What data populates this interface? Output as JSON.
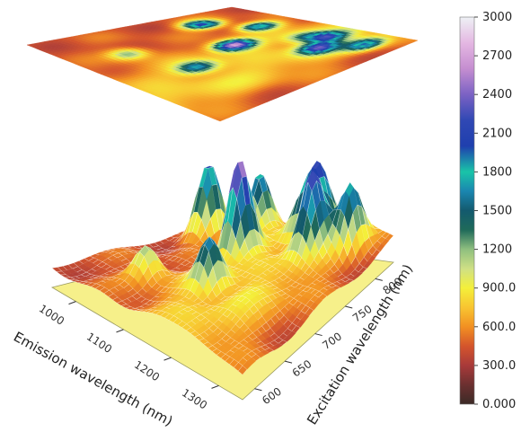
{
  "chart_data": {
    "type": "surface3d",
    "title": "",
    "xlabel": "Emission wavelength (nm)",
    "ylabel": "Excitation wavelength (nm)",
    "zlabel": "",
    "emission_ticks": [
      "1000",
      "1100",
      "1200",
      "1300"
    ],
    "excitation_ticks": [
      "600",
      "650",
      "700",
      "750",
      "800"
    ],
    "emission_range": [
      950,
      1350
    ],
    "excitation_range": [
      580,
      830
    ],
    "z_range": [
      0,
      3000
    ],
    "baseline": 450,
    "ridges": [
      {
        "emission": 1250,
        "amplitude": 350,
        "width_nm": 60
      },
      {
        "emission": 1150,
        "amplitude": 220,
        "width_nm": 50
      }
    ],
    "peaks": [
      {
        "emission": 1010,
        "excitation": 760,
        "intensity": 2100
      },
      {
        "emission": 1130,
        "excitation": 730,
        "intensity": 2600
      },
      {
        "emission": 1080,
        "excitation": 790,
        "intensity": 1850
      },
      {
        "emission": 1240,
        "excitation": 770,
        "intensity": 1950
      },
      {
        "emission": 1210,
        "excitation": 800,
        "intensity": 1850
      },
      {
        "emission": 1290,
        "excitation": 800,
        "intensity": 1700
      },
      {
        "emission": 1170,
        "excitation": 660,
        "intensity": 1550
      },
      {
        "emission": 1060,
        "excitation": 640,
        "intensity": 1250
      },
      {
        "emission": 1180,
        "excitation": 790,
        "intensity": 1200
      }
    ],
    "colorbar": {
      "tick_labels": [
        "3000",
        "2700",
        "2400",
        "2100",
        "1800",
        "1500",
        "1200",
        "900.0",
        "600.0",
        "300.0",
        "0.000"
      ],
      "tick_values": [
        3000,
        2700,
        2400,
        2100,
        1800,
        1500,
        1200,
        900,
        600,
        300,
        0
      ]
    },
    "colors": {
      "stops": [
        [
          0,
          "#3b2a26"
        ],
        [
          150,
          "#6b3030"
        ],
        [
          300,
          "#a83a3a"
        ],
        [
          450,
          "#d4552c"
        ],
        [
          600,
          "#f29022"
        ],
        [
          750,
          "#f8c531"
        ],
        [
          900,
          "#f4f03a"
        ],
        [
          1050,
          "#cfe085"
        ],
        [
          1200,
          "#8fbf7f"
        ],
        [
          1350,
          "#1f6a5a"
        ],
        [
          1500,
          "#135a6e"
        ],
        [
          1650,
          "#1a86b0"
        ],
        [
          1800,
          "#19c4a8"
        ],
        [
          2000,
          "#1f3fae"
        ],
        [
          2200,
          "#3048b4"
        ],
        [
          2400,
          "#7b62c4"
        ],
        [
          2600,
          "#c58ed0"
        ],
        [
          2800,
          "#e4b7e2"
        ],
        [
          3000,
          "#eef1f5"
        ]
      ],
      "floor": "#f6f08a",
      "floor_edge": "#9a9a60",
      "mesh": "rgba(255,255,255,0.55)"
    }
  }
}
